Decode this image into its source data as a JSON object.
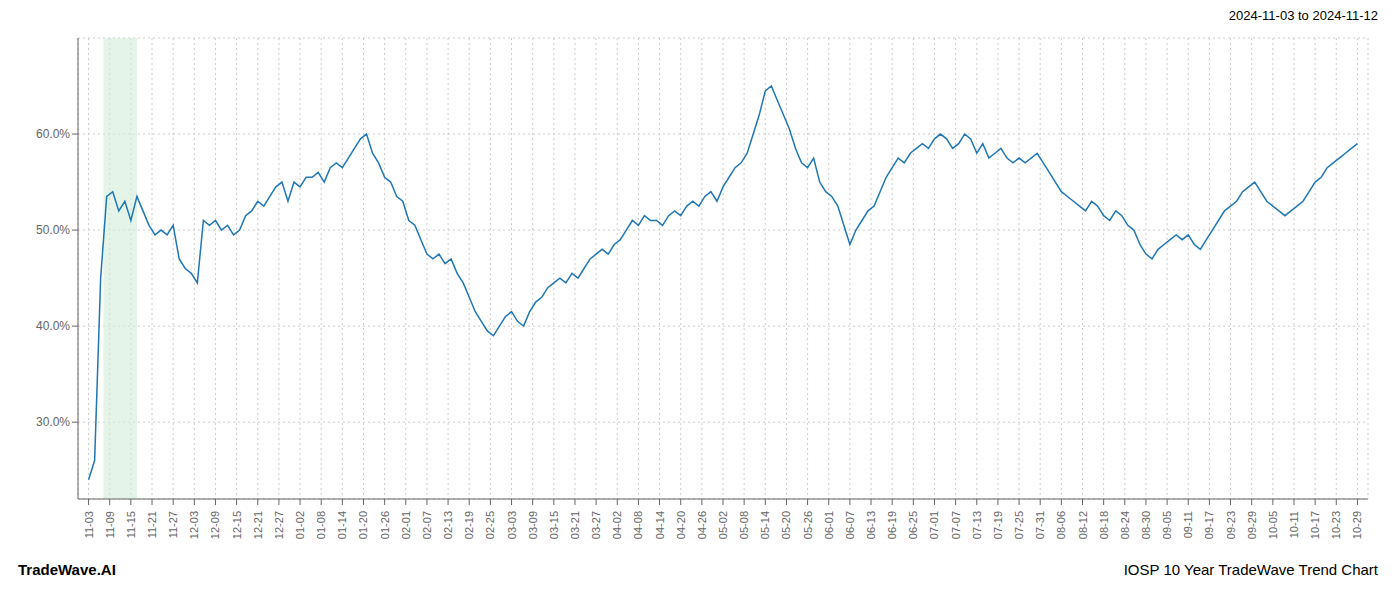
{
  "chart_data": {
    "type": "line",
    "title": "IOSP 10 Year TradeWave Trend Chart",
    "subtitle": "2024-11-03 to 2024-11-12",
    "annotations": [
      "TradeWave.AI"
    ],
    "color": "#1f77b4",
    "grid": true,
    "highlight": {
      "x": [
        0.7,
        2.3
      ],
      "color": "#d4edda"
    },
    "xlim": [
      -0.5,
      60.5
    ],
    "xticks": [
      {
        "value": 0,
        "label": "11-03"
      },
      {
        "value": 1,
        "label": "11-09"
      },
      {
        "value": 2,
        "label": "11-15"
      },
      {
        "value": 3,
        "label": "11-21"
      },
      {
        "value": 4,
        "label": "11-27"
      },
      {
        "value": 5,
        "label": "12-03"
      },
      {
        "value": 6,
        "label": "12-09"
      },
      {
        "value": 7,
        "label": "12-15"
      },
      {
        "value": 8,
        "label": "12-21"
      },
      {
        "value": 9,
        "label": "12-27"
      },
      {
        "value": 10,
        "label": "01-02"
      },
      {
        "value": 11,
        "label": "01-08"
      },
      {
        "value": 12,
        "label": "01-14"
      },
      {
        "value": 13,
        "label": "01-20"
      },
      {
        "value": 14,
        "label": "01-26"
      },
      {
        "value": 15,
        "label": "02-01"
      },
      {
        "value": 16,
        "label": "02-07"
      },
      {
        "value": 17,
        "label": "02-13"
      },
      {
        "value": 18,
        "label": "02-19"
      },
      {
        "value": 19,
        "label": "02-25"
      },
      {
        "value": 20,
        "label": "03-03"
      },
      {
        "value": 21,
        "label": "03-09"
      },
      {
        "value": 22,
        "label": "03-15"
      },
      {
        "value": 23,
        "label": "03-21"
      },
      {
        "value": 24,
        "label": "03-27"
      },
      {
        "value": 25,
        "label": "04-02"
      },
      {
        "value": 26,
        "label": "04-08"
      },
      {
        "value": 27,
        "label": "04-14"
      },
      {
        "value": 28,
        "label": "04-20"
      },
      {
        "value": 29,
        "label": "04-26"
      },
      {
        "value": 30,
        "label": "05-02"
      },
      {
        "value": 31,
        "label": "05-08"
      },
      {
        "value": 32,
        "label": "05-14"
      },
      {
        "value": 33,
        "label": "05-20"
      },
      {
        "value": 34,
        "label": "05-26"
      },
      {
        "value": 35,
        "label": "06-01"
      },
      {
        "value": 36,
        "label": "06-07"
      },
      {
        "value": 37,
        "label": "06-13"
      },
      {
        "value": 38,
        "label": "06-19"
      },
      {
        "value": 39,
        "label": "06-25"
      },
      {
        "value": 40,
        "label": "07-01"
      },
      {
        "value": 41,
        "label": "07-07"
      },
      {
        "value": 42,
        "label": "07-13"
      },
      {
        "value": 43,
        "label": "07-19"
      },
      {
        "value": 44,
        "label": "07-25"
      },
      {
        "value": 45,
        "label": "07-31"
      },
      {
        "value": 46,
        "label": "08-06"
      },
      {
        "value": 47,
        "label": "08-12"
      },
      {
        "value": 48,
        "label": "08-18"
      },
      {
        "value": 49,
        "label": "08-24"
      },
      {
        "value": 50,
        "label": "08-30"
      },
      {
        "value": 51,
        "label": "09-05"
      },
      {
        "value": 52,
        "label": "09-11"
      },
      {
        "value": 53,
        "label": "09-17"
      },
      {
        "value": 54,
        "label": "09-23"
      },
      {
        "value": 55,
        "label": "09-29"
      },
      {
        "value": 56,
        "label": "10-05"
      },
      {
        "value": 57,
        "label": "10-11"
      },
      {
        "value": 58,
        "label": "10-17"
      },
      {
        "value": 59,
        "label": "10-23"
      },
      {
        "value": 60,
        "label": "10-29"
      }
    ],
    "ylim": [
      22,
      70
    ],
    "yticks": [
      {
        "value": 30,
        "label": "30.0%"
      },
      {
        "value": 40,
        "label": "40.0%"
      },
      {
        "value": 50,
        "label": "50.0%"
      },
      {
        "value": 60,
        "label": "60.0%"
      }
    ],
    "x": [
      0,
      0.2857,
      0.5714,
      0.8571,
      1.1429,
      1.4286,
      1.7143,
      2,
      2.2857,
      2.5714,
      2.8571,
      3.1429,
      3.4286,
      3.7143,
      4,
      4.2857,
      4.5714,
      4.8571,
      5.1429,
      5.4286,
      5.7143,
      6,
      6.2857,
      6.5714,
      6.8571,
      7.1429,
      7.4286,
      7.7143,
      8,
      8.2857,
      8.5714,
      8.8571,
      9.1429,
      9.4286,
      9.7143,
      10,
      10.2857,
      10.5714,
      10.8571,
      11.1429,
      11.4286,
      11.7143,
      12,
      12.2857,
      12.5714,
      12.8571,
      13.1429,
      13.4286,
      13.7143,
      14,
      14.2857,
      14.5714,
      14.8571,
      15.1429,
      15.4286,
      15.7143,
      16,
      16.2857,
      16.5714,
      16.8571,
      17.1429,
      17.4286,
      17.7143,
      18,
      18.2857,
      18.5714,
      18.8571,
      19.1429,
      19.4286,
      19.7143,
      20,
      20.2857,
      20.5714,
      20.8571,
      21.1429,
      21.4286,
      21.7143,
      22,
      22.2857,
      22.5714,
      22.8571,
      23.1429,
      23.4286,
      23.7143,
      24,
      24.2857,
      24.5714,
      24.8571,
      25.1429,
      25.4286,
      25.7143,
      26,
      26.2857,
      26.5714,
      26.8571,
      27.1429,
      27.4286,
      27.7143,
      28,
      28.2857,
      28.5714,
      28.8571,
      29.1429,
      29.4286,
      29.7143,
      30,
      30.2857,
      30.5714,
      30.8571,
      31.1429,
      31.4286,
      31.7143,
      32,
      32.2857,
      32.5714,
      32.8571,
      33.1429,
      33.4286,
      33.7143,
      34,
      34.2857,
      34.5714,
      34.8571,
      35.1429,
      35.4286,
      35.7143,
      36,
      36.2857,
      36.5714,
      36.8571,
      37.1429,
      37.4286,
      37.7143,
      38,
      38.2857,
      38.5714,
      38.8571,
      39.1429,
      39.4286,
      39.7143,
      40,
      40.2857,
      40.5714,
      40.8571,
      41.1429,
      41.4286,
      41.7143,
      42,
      42.2857,
      42.5714,
      42.8571,
      43.1429,
      43.4286,
      43.7143,
      44,
      44.2857,
      44.5714,
      44.8571,
      45.1429,
      45.4286,
      45.7143,
      46,
      46.2857,
      46.5714,
      46.8571,
      47.1429,
      47.4286,
      47.7143,
      48,
      48.2857,
      48.5714,
      48.8571,
      49.1429,
      49.4286,
      49.7143,
      50,
      50.2857,
      50.5714,
      50.8571,
      51.1429,
      51.4286,
      51.7143,
      52,
      52.2857,
      52.5714,
      52.8571,
      53.1429,
      53.4286,
      53.7143,
      54,
      54.2857,
      54.5714,
      54.8571,
      55.1429,
      55.4286,
      55.7143,
      56,
      56.2857,
      56.5714,
      56.8571,
      57.1429,
      57.4286,
      57.7143,
      58,
      58.2857,
      58.5714,
      58.8571,
      59.1429,
      59.4286,
      59.7143,
      60
    ],
    "values": [
      24.0,
      26.0,
      45.0,
      53.5,
      54.0,
      52.0,
      53.0,
      51.0,
      53.5,
      52.0,
      50.5,
      49.5,
      50.0,
      49.5,
      50.5,
      47.0,
      46.0,
      45.5,
      44.5,
      51.0,
      50.5,
      51.0,
      50.0,
      50.5,
      49.5,
      50.0,
      51.5,
      52.0,
      53.0,
      52.5,
      53.5,
      54.5,
      55.0,
      53.0,
      55.0,
      54.5,
      55.5,
      55.5,
      56.0,
      55.0,
      56.5,
      57.0,
      56.5,
      57.5,
      58.5,
      59.5,
      60.0,
      58.0,
      57.0,
      55.5,
      55.0,
      53.5,
      53.0,
      51.0,
      50.5,
      49.0,
      47.5,
      47.0,
      47.5,
      46.5,
      47.0,
      45.5,
      44.5,
      43.0,
      41.5,
      40.5,
      39.5,
      39.0,
      40.0,
      41.0,
      41.5,
      40.5,
      40.0,
      41.5,
      42.5,
      43.0,
      44.0,
      44.5,
      45.0,
      44.5,
      45.5,
      45.0,
      46.0,
      47.0,
      47.5,
      48.0,
      47.5,
      48.5,
      49.0,
      50.0,
      51.0,
      50.5,
      51.5,
      51.0,
      51.0,
      50.5,
      51.5,
      52.0,
      51.5,
      52.5,
      53.0,
      52.5,
      53.5,
      54.0,
      53.0,
      54.5,
      55.5,
      56.5,
      57.0,
      58.0,
      60.0,
      62.0,
      64.5,
      65.0,
      63.5,
      62.0,
      60.5,
      58.5,
      57.0,
      56.5,
      57.5,
      55.0,
      54.0,
      53.5,
      52.5,
      50.5,
      48.5,
      50.0,
      51.0,
      52.0,
      52.5,
      54.0,
      55.5,
      56.5,
      57.5,
      57.0,
      58.0,
      58.5,
      59.0,
      58.5,
      59.5,
      60.0,
      59.5,
      58.5,
      59.0,
      60.0,
      59.5,
      58.0,
      59.0,
      57.5,
      58.0,
      58.5,
      57.5,
      57.0,
      57.5,
      57.0,
      57.5,
      58.0,
      57.0,
      56.0,
      55.0,
      54.0,
      53.5,
      53.0,
      52.5,
      52.0,
      53.0,
      52.5,
      51.5,
      51.0,
      52.0,
      51.5,
      50.5,
      50.0,
      48.5,
      47.5,
      47.0,
      48.0,
      48.5,
      49.0,
      49.5,
      49.0,
      49.5,
      48.5,
      48.0,
      49.0,
      50.0,
      51.0,
      52.0,
      52.5,
      53.0,
      54.0,
      54.5,
      55.0,
      54.0,
      53.0,
      52.5,
      52.0,
      51.5,
      52.0,
      52.5,
      53.0,
      54.0,
      55.0,
      55.5,
      56.5,
      57.0,
      57.5,
      58.0,
      58.5,
      59.0
    ]
  }
}
